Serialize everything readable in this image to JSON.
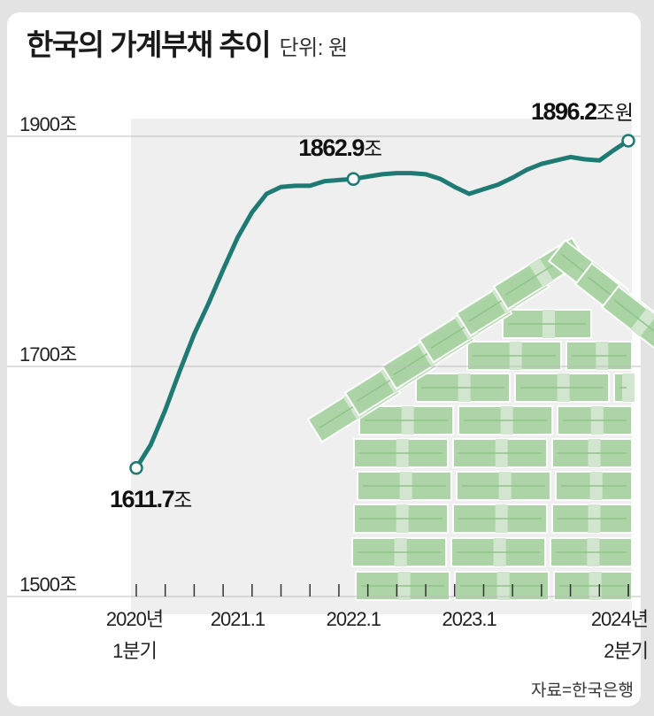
{
  "header": {
    "title": "한국의 가계부채 추이",
    "unit": "단위: 원"
  },
  "source": "자료=한국은행",
  "colors": {
    "line": "#1e7a72",
    "plot_bg": "#efefef",
    "grid": "#bdbdbd",
    "house": "#a9d3a3"
  },
  "chart_data": {
    "type": "line",
    "title": "한국의 가계부채 추이",
    "ylim": [
      1500,
      1900
    ],
    "y_ticks": [
      {
        "value": 1900,
        "label": "1900조"
      },
      {
        "value": 1700,
        "label": "1700조"
      },
      {
        "value": 1500,
        "label": "1500조"
      }
    ],
    "x_ticks": [
      {
        "index": 0,
        "line1": "2020년",
        "line2": "1분기"
      },
      {
        "index": 7,
        "line1": "2021.1",
        "line2": ""
      },
      {
        "index": 15,
        "line1": "2022.1",
        "line2": ""
      },
      {
        "index": 23,
        "line1": "2023.1",
        "line2": ""
      },
      {
        "index": 34,
        "line1": "2024년",
        "line2": "2분기"
      }
    ],
    "series": [
      {
        "values": [
          1611.7,
          1632,
          1662,
          1696,
          1728,
          1755,
          1784,
          1812,
          1834,
          1850,
          1856,
          1857,
          1857,
          1861,
          1862,
          1862.9,
          1865,
          1867,
          1868,
          1868,
          1867,
          1863,
          1856,
          1850,
          1854,
          1858,
          1864,
          1871,
          1876,
          1879,
          1882,
          1880,
          1879,
          1888,
          1896.2
        ]
      }
    ],
    "annotations": [
      {
        "index": 0,
        "value_text": "1611.7",
        "unit_text": "조"
      },
      {
        "index": 15,
        "value_text": "1862.9",
        "unit_text": "조"
      },
      {
        "index": 34,
        "value_text": "1896.2",
        "unit_text": "조원"
      }
    ]
  }
}
